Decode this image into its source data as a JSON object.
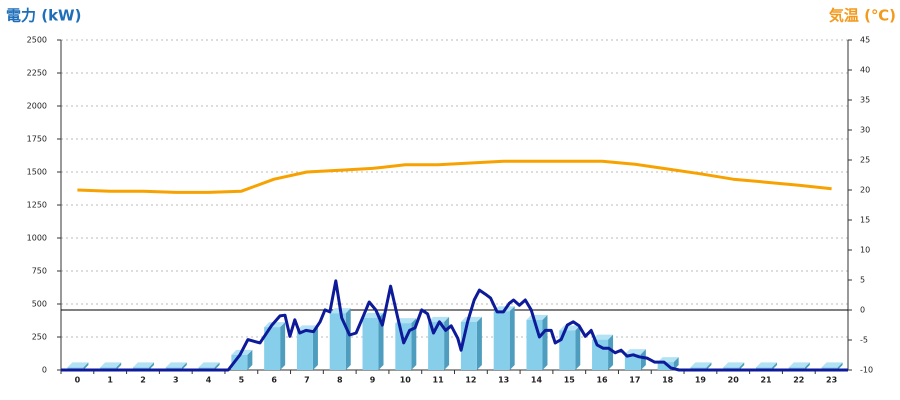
{
  "chart_data": {
    "type": "bar",
    "title": "電力 (kW)",
    "y2_title": "気温 (℃)",
    "title_color": "#1f6fb8",
    "y2_title_color": "#f39a1d",
    "categories": [
      "0",
      "1",
      "2",
      "3",
      "4",
      "5",
      "6",
      "7",
      "8",
      "9",
      "10",
      "11",
      "12",
      "13",
      "14",
      "15",
      "16",
      "17",
      "18",
      "19",
      "20",
      "21",
      "22",
      "23"
    ],
    "ylim": [
      0,
      2500
    ],
    "yticks": [
      0,
      250,
      500,
      750,
      1000,
      1250,
      1500,
      1750,
      2000,
      2250,
      2500
    ],
    "y2lim": [
      -10,
      45
    ],
    "y2ticks": [
      -10,
      -5,
      0,
      5,
      10,
      15,
      20,
      25,
      30,
      35,
      40,
      45
    ],
    "y2_reference_line": 0,
    "grid": true,
    "series": [
      {
        "type": "bar",
        "color": "#87ceeb",
        "values": [
          20,
          20,
          20,
          20,
          20,
          115,
          325,
          300,
          430,
          395,
          355,
          365,
          365,
          445,
          380,
          300,
          230,
          120,
          60,
          20,
          20,
          20,
          20,
          20
        ]
      },
      {
        "type": "line",
        "color": "#0d1a99",
        "x": [
          -0.5,
          4.6,
          4.96,
          5.2,
          5.57,
          5.93,
          6.18,
          6.33,
          6.48,
          6.63,
          6.78,
          6.97,
          7.2,
          7.4,
          7.55,
          7.7,
          7.88,
          8.06,
          8.3,
          8.5,
          8.73,
          8.9,
          9.1,
          9.3,
          9.55,
          9.77,
          9.95,
          10.13,
          10.3,
          10.5,
          10.68,
          10.86,
          11.04,
          11.23,
          11.4,
          11.6,
          11.7,
          11.9,
          12.1,
          12.26,
          12.44,
          12.6,
          12.8,
          12.99,
          13.17,
          13.3,
          13.48,
          13.66,
          13.84,
          14.09,
          14.27,
          14.45,
          14.57,
          14.75,
          14.94,
          15.12,
          15.3,
          15.49,
          15.67,
          15.85,
          16.03,
          16.2,
          16.4,
          16.58,
          16.76,
          16.95,
          17.13,
          17.37,
          17.6,
          17.89,
          18.1,
          18.35,
          23.5
        ],
        "values": [
          0,
          0,
          115,
          230,
          205,
          340,
          410,
          415,
          255,
          380,
          280,
          300,
          290,
          365,
          455,
          440,
          675,
          395,
          265,
          280,
          415,
          515,
          455,
          340,
          635,
          395,
          205,
          300,
          320,
          455,
          425,
          280,
          365,
          300,
          335,
          240,
          150,
          365,
          530,
          605,
          575,
          545,
          440,
          440,
          505,
          530,
          490,
          530,
          455,
          250,
          300,
          300,
          205,
          230,
          340,
          365,
          335,
          255,
          300,
          190,
          165,
          165,
          130,
          150,
          105,
          115,
          100,
          90,
          60,
          60,
          15,
          0,
          0
        ]
      },
      {
        "type": "line",
        "axis": "y2",
        "color": "#f7a200",
        "x": [
          0,
          1,
          2,
          3,
          4,
          5,
          6,
          7,
          8,
          9,
          10,
          11,
          12,
          13,
          14,
          15,
          16,
          17,
          18,
          19,
          20,
          21,
          22,
          23
        ],
        "values": [
          20.0,
          19.8,
          19.8,
          19.6,
          19.6,
          19.8,
          21.8,
          23.0,
          23.3,
          23.6,
          24.2,
          24.2,
          24.5,
          24.8,
          24.8,
          24.8,
          24.8,
          24.3,
          23.5,
          22.7,
          21.8,
          21.3,
          20.8,
          20.2
        ]
      }
    ]
  }
}
